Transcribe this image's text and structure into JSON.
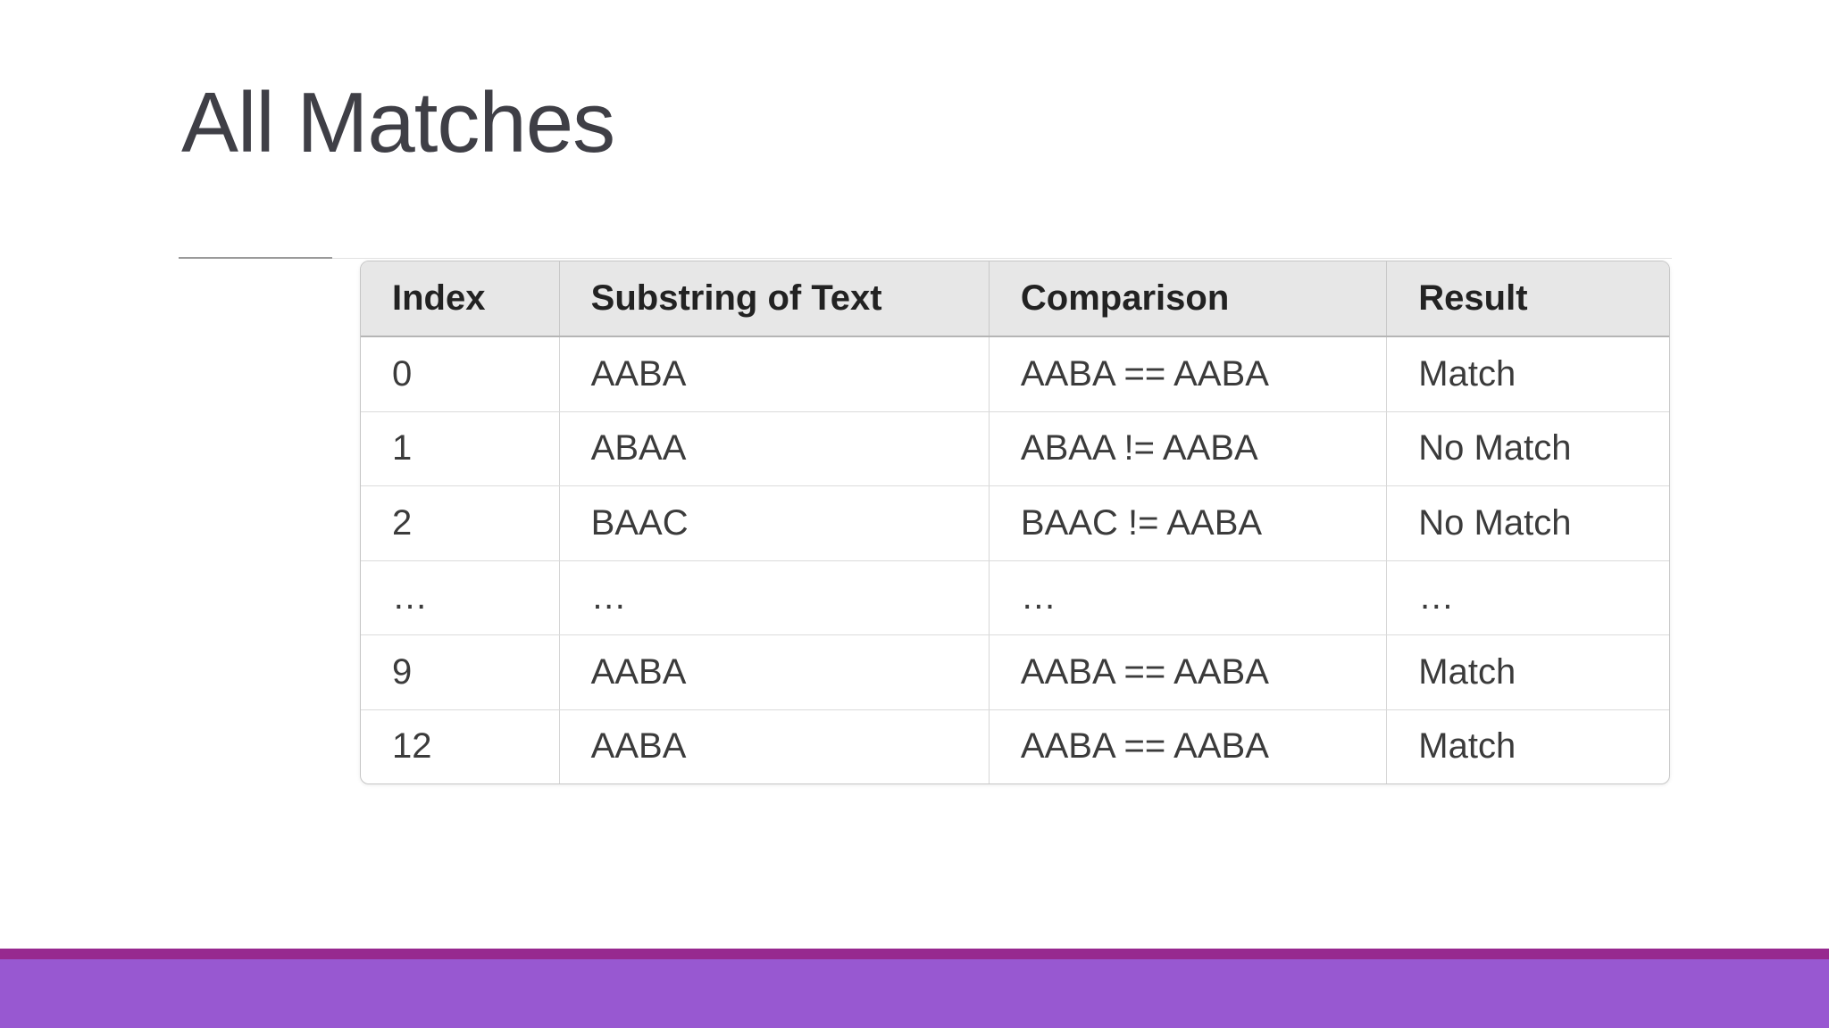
{
  "slide": {
    "title": "All Matches"
  },
  "table": {
    "headers": [
      "Index",
      "Substring of Text",
      "Comparison",
      "Result"
    ],
    "rows": [
      [
        "0",
        "AABA",
        "AABA == AABA",
        "Match"
      ],
      [
        "1",
        "ABAA",
        "ABAA != AABA",
        "No Match"
      ],
      [
        "2",
        "BAAC",
        "BAAC != AABA",
        "No Match"
      ],
      [
        "…",
        "…",
        "…",
        "…"
      ],
      [
        "9",
        "AABA",
        "AABA == AABA",
        "Match"
      ],
      [
        "12",
        "AABA",
        "AABA == AABA",
        "Match"
      ]
    ]
  },
  "theme": {
    "title_color": "#3F3F46",
    "table_header_bg": "#E7E7E7",
    "footer_stripe_color": "#97298F",
    "footer_bar_color": "#9858D1"
  }
}
